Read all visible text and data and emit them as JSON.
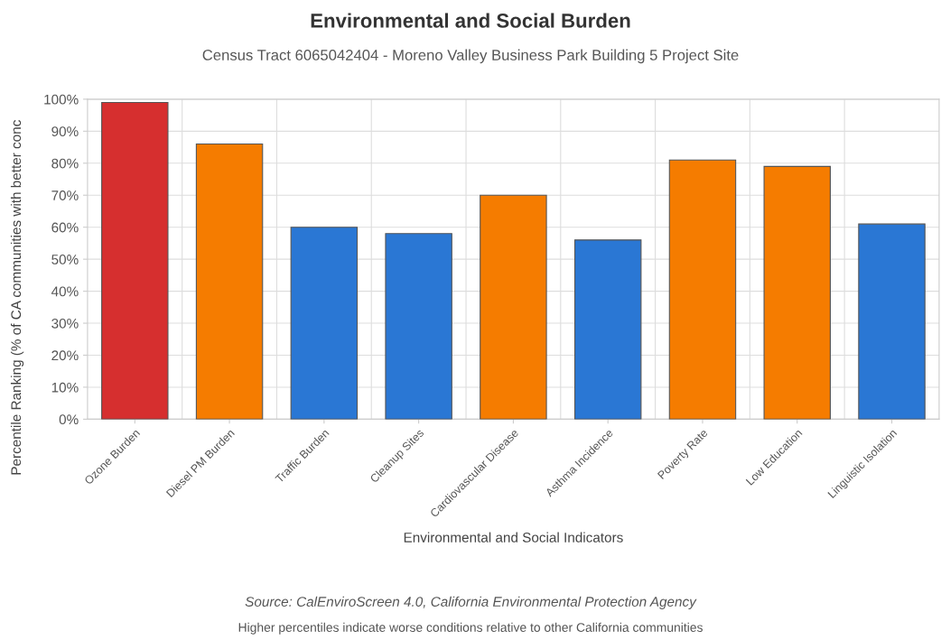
{
  "chart_data": {
    "type": "bar",
    "title": "Environmental and Social Burden",
    "subtitle": "Census Tract 6065042404 - Moreno Valley Business Park Building 5 Project Site",
    "xlabel": "Environmental and Social Indicators",
    "ylabel": "Percentile Ranking (% of CA communities with better conc",
    "categories": [
      "Ozone Burden",
      "Diesel PM Burden",
      "Traffic Burden",
      "Cleanup Sites",
      "Cardiovascular Disease",
      "Asthma Incidence",
      "Poverty Rate",
      "Low Education",
      "Linguistic Isolation"
    ],
    "values": [
      99,
      86,
      60,
      58,
      70,
      56,
      81,
      79,
      61
    ],
    "colors": [
      "#d62f2f",
      "#f57c00",
      "#2a77d4",
      "#2a77d4",
      "#f57c00",
      "#2a77d4",
      "#f57c00",
      "#f57c00",
      "#2a77d4"
    ],
    "ylim": [
      0,
      100
    ],
    "yticks": [
      {
        "value": 0,
        "label": "0%"
      },
      {
        "value": 10,
        "label": "10%"
      },
      {
        "value": 20,
        "label": "20%"
      },
      {
        "value": 30,
        "label": "30%"
      },
      {
        "value": 40,
        "label": "40%"
      },
      {
        "value": 50,
        "label": "50%"
      },
      {
        "value": 60,
        "label": "60%"
      },
      {
        "value": 70,
        "label": "70%"
      },
      {
        "value": 80,
        "label": "80%"
      },
      {
        "value": 90,
        "label": "90%"
      },
      {
        "value": 100,
        "label": "100%"
      }
    ],
    "grid": true,
    "annotations": [
      "Source: CalEnviroScreen 4.0, California Environmental Protection Agency",
      "Higher percentiles indicate worse conditions relative to other California communities"
    ]
  }
}
